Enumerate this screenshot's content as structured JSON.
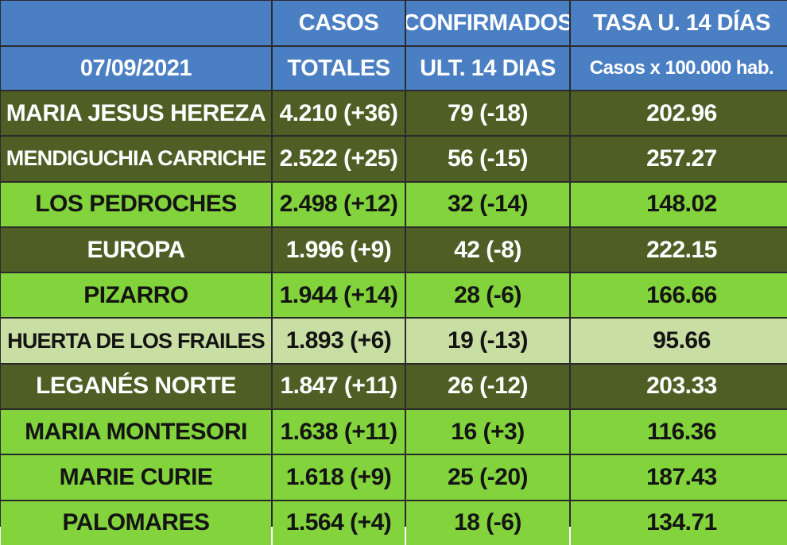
{
  "header": {
    "col1_top": "",
    "col2_top": "CASOS",
    "col3_top": "CONFIRMADOS",
    "col4_top": "TASA U. 14 DÍAS",
    "date": "07/09/2021",
    "col2_bottom": "TOTALES",
    "col3_bottom": "ULT. 14 DIAS",
    "col4_bottom": "Casos x 100.000 hab."
  },
  "rows": [
    {
      "name": "MARIA JESUS HEREZA",
      "total": "4.210 (+36)",
      "confirmed": "79 (-18)",
      "rate": "202.96",
      "shade": "dark"
    },
    {
      "name": "MENDIGUCHIA CARRICHE",
      "total": "2.522 (+25)",
      "confirmed": "56 (-15)",
      "rate": "257.27",
      "shade": "dark"
    },
    {
      "name": "LOS PEDROCHES",
      "total": "2.498 (+12)",
      "confirmed": "32 (-14)",
      "rate": "148.02",
      "shade": "bright"
    },
    {
      "name": "EUROPA",
      "total": "1.996 (+9)",
      "confirmed": "42 (-8)",
      "rate": "222.15",
      "shade": "dark"
    },
    {
      "name": "PIZARRO",
      "total": "1.944 (+14)",
      "confirmed": "28 (-6)",
      "rate": "166.66",
      "shade": "bright"
    },
    {
      "name": "HUERTA DE LOS FRAILES",
      "total": "1.893 (+6)",
      "confirmed": "19 (-13)",
      "rate": "95.66",
      "shade": "pale"
    },
    {
      "name": "LEGANÉS NORTE",
      "total": "1.847 (+11)",
      "confirmed": "26 (-12)",
      "rate": "203.33",
      "shade": "dark"
    },
    {
      "name": "MARIA MONTESORI",
      "total": "1.638 (+11)",
      "confirmed": "16 (+3)",
      "rate": "116.36",
      "shade": "bright"
    },
    {
      "name": "MARIE CURIE",
      "total": "1.618 (+9)",
      "confirmed": "25 (-20)",
      "rate": "187.43",
      "shade": "bright"
    },
    {
      "name": "PALOMARES",
      "total": "1.564 (+4)",
      "confirmed": "18 (-6)",
      "rate": "134.71",
      "shade": "bright"
    }
  ],
  "colors": {
    "header_blue": "#4a7fc4",
    "dark_olive": "#4e5e25",
    "bright_green": "#82d33c",
    "pale_green": "#c8dea2"
  }
}
